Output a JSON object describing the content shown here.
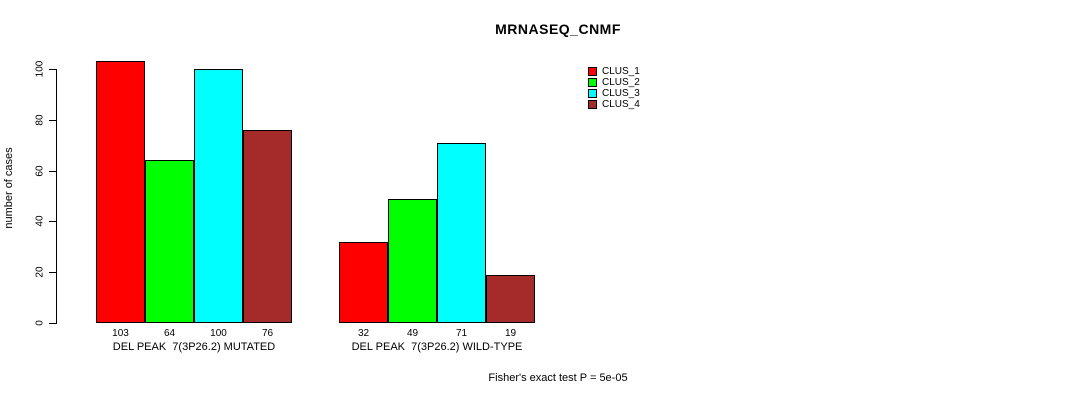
{
  "chart_data": {
    "type": "bar",
    "title": "MRNASEQ_CNMF",
    "ylabel": "number of cases",
    "ylim": [
      0,
      100
    ],
    "yticks": [
      0,
      20,
      40,
      60,
      80,
      100
    ],
    "grid": false,
    "legend_position": "top-right",
    "series_names": [
      "CLUS_1",
      "CLUS_2",
      "CLUS_3",
      "CLUS_4"
    ],
    "series_colors": [
      "#FF0000",
      "#00FF00",
      "#00FFFF",
      "#A52A2A"
    ],
    "groups": [
      {
        "label": "DEL PEAK  7(3P26.2) MUTATED",
        "values": [
          103,
          64,
          100,
          76
        ]
      },
      {
        "label": "DEL PEAK  7(3P26.2) WILD-TYPE",
        "values": [
          32,
          49,
          71,
          19
        ]
      }
    ],
    "annotation": "Fisher's exact test P = 5e-05"
  }
}
